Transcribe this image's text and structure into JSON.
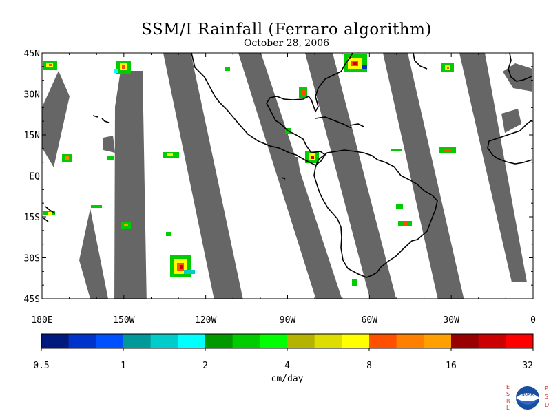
{
  "map": {
    "title": "SSM/I Rainfall (Ferraro algorithm)",
    "subtitle": "October 28, 2006",
    "extent": {
      "lon_min": 180,
      "lon_max": 360,
      "lat_min": -45,
      "lat_max": 45
    },
    "lat_labels": [
      "45N",
      "30N",
      "15N",
      "EQ",
      "15S",
      "30S",
      "45S"
    ],
    "lat_values": [
      45,
      30,
      15,
      0,
      -15,
      -30,
      -45
    ],
    "lon_labels": [
      "180E",
      "150W",
      "120W",
      "90W",
      "60W",
      "30W",
      "0"
    ],
    "lon_values": [
      180,
      210,
      240,
      270,
      300,
      330,
      360
    ],
    "missing_swath_color": "#666666",
    "coastline_color": "#000000",
    "colorbar": {
      "unit": "cm/day",
      "tick_labels": [
        "0.5",
        "1",
        "2",
        "4",
        "8",
        "16",
        "32"
      ],
      "colors": [
        "#00197f",
        "#0033cc",
        "#0050ff",
        "#009999",
        "#00cccc",
        "#00ffff",
        "#009900",
        "#00cc00",
        "#00ff00",
        "#b3b300",
        "#dddd00",
        "#ffff00",
        "#ff5000",
        "#ff7f00",
        "#ffa000",
        "#990000",
        "#cc0000",
        "#ff0000"
      ]
    },
    "credits": {
      "left_text": "ESRL",
      "right_text": "PSD",
      "center_text": "NOAA"
    }
  }
}
